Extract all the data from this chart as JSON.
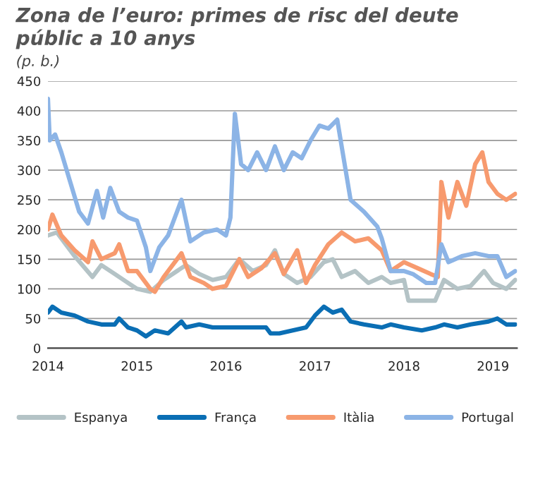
{
  "chart_data": {
    "type": "line",
    "title": "Zona de l’euro: primes de risc del deute públic a 10 anys",
    "ylabel": "(p. b.)",
    "xlim": [
      2014,
      2019.27
    ],
    "xticks": [
      2014,
      2015,
      2016,
      2017,
      2018,
      2019
    ],
    "ylim": [
      0,
      450
    ],
    "yticks": [
      0,
      50,
      100,
      150,
      200,
      250,
      300,
      350,
      400,
      450
    ],
    "grid": "y",
    "legend": "bottom",
    "series": [
      {
        "name": "Espanya",
        "color": "#b4c3c6",
        "x": [
          2014.0,
          2014.1,
          2014.3,
          2014.5,
          2014.6,
          2014.75,
          2014.9,
          2015.0,
          2015.15,
          2015.3,
          2015.45,
          2015.55,
          2015.7,
          2015.85,
          2016.0,
          2016.15,
          2016.3,
          2016.45,
          2016.55,
          2016.65,
          2016.8,
          2016.95,
          2017.1,
          2017.2,
          2017.3,
          2017.45,
          2017.6,
          2017.75,
          2017.85,
          2018.0,
          2018.05,
          2018.2,
          2018.35,
          2018.45,
          2018.6,
          2018.75,
          2018.9,
          2019.0,
          2019.15,
          2019.25
        ],
        "values": [
          190,
          195,
          155,
          120,
          140,
          125,
          110,
          100,
          95,
          115,
          130,
          140,
          125,
          115,
          120,
          150,
          130,
          140,
          165,
          125,
          110,
          120,
          145,
          150,
          120,
          130,
          110,
          120,
          110,
          115,
          80,
          80,
          80,
          115,
          100,
          105,
          130,
          110,
          100,
          115
        ]
      },
      {
        "name": "França",
        "color": "#0a6eb4",
        "x": [
          2014.0,
          2014.05,
          2014.15,
          2014.3,
          2014.45,
          2014.6,
          2014.75,
          2014.8,
          2014.9,
          2015.0,
          2015.1,
          2015.2,
          2015.35,
          2015.5,
          2015.55,
          2015.7,
          2015.85,
          2016.0,
          2016.2,
          2016.45,
          2016.5,
          2016.6,
          2016.75,
          2016.9,
          2017.0,
          2017.1,
          2017.2,
          2017.3,
          2017.4,
          2017.55,
          2017.75,
          2017.85,
          2018.0,
          2018.2,
          2018.35,
          2018.45,
          2018.6,
          2018.75,
          2018.95,
          2019.05,
          2019.15,
          2019.25
        ],
        "values": [
          60,
          70,
          60,
          55,
          45,
          40,
          40,
          50,
          35,
          30,
          20,
          30,
          25,
          45,
          35,
          40,
          35,
          35,
          35,
          35,
          25,
          25,
          30,
          35,
          55,
          70,
          60,
          65,
          45,
          40,
          35,
          40,
          35,
          30,
          35,
          40,
          35,
          40,
          45,
          50,
          40,
          40
        ]
      },
      {
        "name": "Itàlia",
        "color": "#f79a6e",
        "x": [
          2014.0,
          2014.05,
          2014.15,
          2014.3,
          2014.45,
          2014.5,
          2014.6,
          2014.75,
          2014.8,
          2014.9,
          2015.0,
          2015.15,
          2015.2,
          2015.3,
          2015.45,
          2015.5,
          2015.6,
          2015.75,
          2015.85,
          2016.0,
          2016.15,
          2016.25,
          2016.4,
          2016.55,
          2016.65,
          2016.8,
          2016.9,
          2017.0,
          2017.15,
          2017.3,
          2017.45,
          2017.6,
          2017.75,
          2017.85,
          2018.0,
          2018.15,
          2018.3,
          2018.38,
          2018.42,
          2018.5,
          2018.6,
          2018.7,
          2018.8,
          2018.88,
          2018.95,
          2019.05,
          2019.15,
          2019.25
        ],
        "values": [
          200,
          225,
          190,
          165,
          145,
          180,
          150,
          160,
          175,
          130,
          130,
          100,
          95,
          120,
          150,
          160,
          120,
          110,
          100,
          105,
          150,
          120,
          135,
          160,
          125,
          165,
          110,
          140,
          175,
          195,
          180,
          185,
          165,
          130,
          145,
          135,
          125,
          120,
          280,
          220,
          280,
          240,
          310,
          330,
          280,
          260,
          250,
          260
        ]
      },
      {
        "name": "Portugal",
        "color": "#8cb4e6",
        "x": [
          2014.0,
          2014.02,
          2014.08,
          2014.15,
          2014.25,
          2014.35,
          2014.45,
          2014.55,
          2014.62,
          2014.7,
          2014.8,
          2014.9,
          2015.0,
          2015.1,
          2015.15,
          2015.25,
          2015.35,
          2015.45,
          2015.5,
          2015.6,
          2015.75,
          2015.9,
          2016.0,
          2016.05,
          2016.1,
          2016.17,
          2016.25,
          2016.35,
          2016.45,
          2016.55,
          2016.65,
          2016.75,
          2016.85,
          2016.95,
          2017.05,
          2017.15,
          2017.25,
          2017.3,
          2017.4,
          2017.55,
          2017.7,
          2017.75,
          2017.85,
          2018.0,
          2018.1,
          2018.25,
          2018.35,
          2018.42,
          2018.5,
          2018.65,
          2018.8,
          2018.95,
          2019.05,
          2019.15,
          2019.25
        ],
        "values": [
          420,
          350,
          360,
          330,
          280,
          230,
          210,
          265,
          220,
          270,
          230,
          220,
          215,
          170,
          130,
          170,
          190,
          230,
          250,
          180,
          195,
          200,
          190,
          220,
          395,
          310,
          300,
          330,
          300,
          340,
          300,
          330,
          320,
          350,
          375,
          370,
          385,
          340,
          250,
          230,
          205,
          185,
          130,
          130,
          125,
          110,
          110,
          175,
          145,
          155,
          160,
          155,
          155,
          120,
          130
        ]
      }
    ]
  }
}
